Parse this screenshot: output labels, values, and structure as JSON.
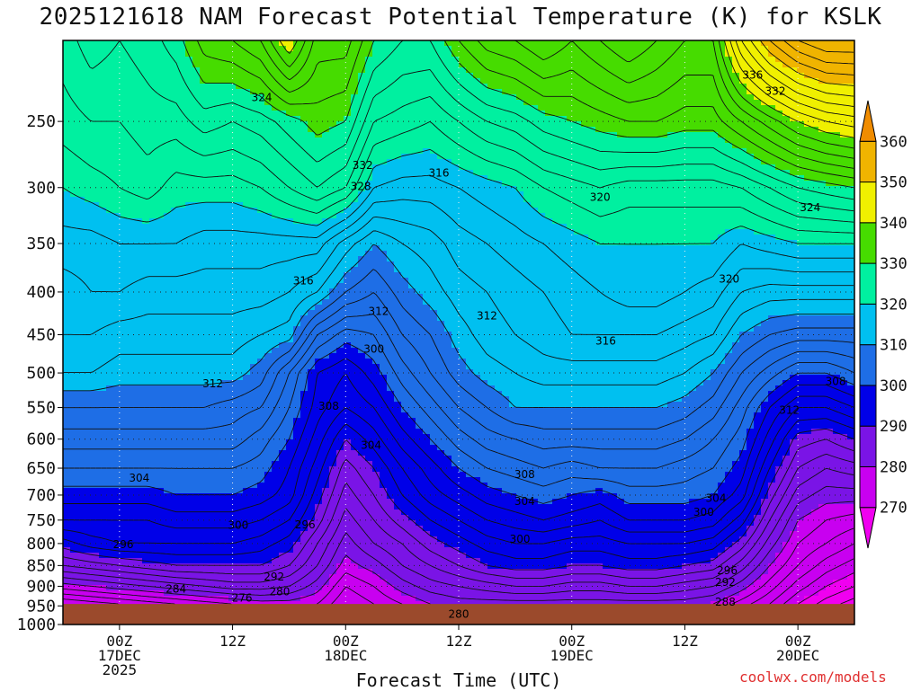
{
  "title": "2025121618 NAM Forecast Potential Temperature (K) for KSLK",
  "xlabel": "Forecast Time (UTC)",
  "credit": "coolwx.com/models",
  "colors": {
    "ground": "#9b4a2c",
    "levels": [
      {
        "min": 260,
        "max": 270,
        "color": "#f000f0"
      },
      {
        "min": 270,
        "max": 280,
        "color": "#c800f0"
      },
      {
        "min": 280,
        "max": 290,
        "color": "#7a14e6"
      },
      {
        "min": 290,
        "max": 300,
        "color": "#0000e8"
      },
      {
        "min": 300,
        "max": 310,
        "color": "#1e6ee6"
      },
      {
        "min": 310,
        "max": 320,
        "color": "#00c0f0"
      },
      {
        "min": 320,
        "max": 330,
        "color": "#00f0a0"
      },
      {
        "min": 330,
        "max": 340,
        "color": "#46dc00"
      },
      {
        "min": 340,
        "max": 350,
        "color": "#f0f000"
      },
      {
        "min": 350,
        "max": 360,
        "color": "#f0b400"
      },
      {
        "min": 360,
        "max": 370,
        "color": "#f08c00"
      }
    ]
  },
  "chart_data": {
    "type": "heatmap",
    "title": "2025121618 NAM Forecast Potential Temperature (K) for KSLK",
    "xlabel": "Forecast Time (UTC)",
    "ylabel": "",
    "y_scale": "log-pressure, inverted",
    "ylim": [
      1000,
      200
    ],
    "xlim_hours": [
      -6,
      78
    ],
    "x_tick_labels": [
      {
        "hour": 0,
        "lines": [
          "00Z",
          "17DEC",
          "2025"
        ]
      },
      {
        "hour": 12,
        "lines": [
          "12Z"
        ]
      },
      {
        "hour": 24,
        "lines": [
          "00Z",
          "18DEC"
        ]
      },
      {
        "hour": 36,
        "lines": [
          "12Z"
        ]
      },
      {
        "hour": 48,
        "lines": [
          "00Z",
          "19DEC"
        ]
      },
      {
        "hour": 60,
        "lines": [
          "12Z"
        ]
      },
      {
        "hour": 72,
        "lines": [
          "00Z",
          "20DEC"
        ]
      }
    ],
    "y_ticks": [
      250,
      300,
      350,
      400,
      450,
      500,
      550,
      600,
      650,
      700,
      750,
      800,
      850,
      900,
      950,
      1000
    ],
    "colorbar_ticks": [
      270,
      280,
      290,
      300,
      310,
      320,
      330,
      340,
      350,
      360
    ],
    "grid": true,
    "ground_pressure_hpa": 945,
    "x_hours": [
      -6,
      -3,
      0,
      3,
      6,
      9,
      12,
      15,
      18,
      21,
      24,
      27,
      30,
      33,
      36,
      39,
      42,
      45,
      48,
      51,
      54,
      57,
      60,
      63,
      66,
      69,
      72,
      75,
      78
    ],
    "pressure_levels": [
      200,
      250,
      300,
      350,
      400,
      450,
      500,
      550,
      600,
      650,
      700,
      750,
      800,
      850,
      900,
      945
    ],
    "theta_K": [
      [
        325,
        327,
        326,
        327,
        329,
        333,
        334,
        336,
        342,
        335,
        335,
        330,
        328,
        328,
        332,
        335,
        336,
        338,
        336,
        338,
        340,
        338,
        336,
        336,
        346,
        352,
        356,
        358,
        358
      ],
      [
        323,
        324,
        324,
        325,
        325,
        327,
        326,
        327,
        329,
        331,
        330,
        324,
        323,
        322,
        324,
        326,
        327,
        329,
        330,
        331,
        332,
        332,
        331,
        331,
        334,
        337,
        340,
        342,
        343
      ],
      [
        320,
        321,
        322,
        323,
        321,
        321,
        321,
        322,
        324,
        326,
        324,
        318,
        317,
        317,
        318,
        319,
        320,
        322,
        323,
        324,
        323,
        323,
        323,
        323,
        324,
        326,
        328,
        329,
        330
      ],
      [
        317,
        317,
        318,
        318,
        318,
        317,
        317,
        317,
        317,
        317,
        313,
        310,
        312,
        313,
        315,
        316,
        317,
        318,
        319,
        320,
        320,
        320,
        320,
        320,
        318,
        319,
        320,
        320,
        320
      ],
      [
        315,
        316,
        316,
        315,
        315,
        315,
        315,
        315,
        314,
        312,
        308,
        306,
        309,
        311,
        313,
        314,
        315,
        316,
        317,
        318,
        319,
        319,
        318,
        317,
        314,
        313,
        313,
        313,
        313
      ],
      [
        314,
        314,
        313,
        313,
        313,
        313,
        313,
        312,
        311,
        304,
        301,
        302,
        306,
        308,
        311,
        313,
        314,
        315,
        316,
        316,
        316,
        316,
        315,
        314,
        310,
        308,
        307,
        307,
        307
      ],
      [
        312,
        312,
        311,
        311,
        311,
        311,
        311,
        309,
        304,
        298,
        296,
        299,
        303,
        306,
        309,
        311,
        312,
        313,
        313,
        313,
        313,
        313,
        312,
        310,
        306,
        303,
        300,
        300,
        302
      ],
      [
        308,
        308,
        308,
        308,
        308,
        308,
        307,
        306,
        302,
        297,
        294,
        296,
        300,
        303,
        306,
        308,
        310,
        310,
        310,
        310,
        310,
        310,
        309,
        307,
        303,
        298,
        294,
        294,
        296
      ],
      [
        305,
        305,
        305,
        305,
        305,
        305,
        305,
        303,
        300,
        295,
        290,
        293,
        297,
        300,
        303,
        305,
        306,
        307,
        307,
        307,
        307,
        307,
        306,
        304,
        301,
        295,
        289,
        288,
        290
      ],
      [
        302,
        302,
        302,
        302,
        302,
        302,
        302,
        301,
        298,
        293,
        287,
        290,
        294,
        297,
        300,
        302,
        303,
        304,
        303,
        304,
        304,
        304,
        303,
        302,
        299,
        292,
        286,
        284,
        285
      ],
      [
        299,
        299,
        299,
        299,
        300,
        300,
        300,
        299,
        297,
        291,
        285,
        288,
        292,
        295,
        297,
        299,
        300,
        301,
        300,
        299,
        301,
        301,
        301,
        300,
        297,
        289,
        283,
        281,
        281
      ],
      [
        296,
        296,
        296,
        296,
        297,
        297,
        297,
        296,
        294,
        289,
        283,
        286,
        289,
        292,
        294,
        296,
        297,
        298,
        297,
        296,
        298,
        298,
        298,
        297,
        293,
        286,
        280,
        278,
        277
      ],
      [
        291,
        293,
        294,
        294,
        294,
        294,
        294,
        293,
        291,
        286,
        281,
        284,
        286,
        289,
        291,
        293,
        294,
        294,
        293,
        293,
        294,
        294,
        294,
        293,
        289,
        283,
        278,
        276,
        274
      ],
      [
        286,
        287,
        288,
        289,
        290,
        290,
        290,
        290,
        288,
        284,
        279,
        281,
        284,
        286,
        288,
        290,
        291,
        291,
        290,
        290,
        291,
        291,
        290,
        289,
        285,
        280,
        276,
        273,
        271
      ],
      [
        279,
        280,
        281,
        282,
        283,
        284,
        285,
        285,
        284,
        281,
        276,
        278,
        281,
        283,
        284,
        285,
        286,
        286,
        285,
        285,
        286,
        286,
        285,
        284,
        281,
        277,
        273,
        270,
        268
      ],
      [
        272,
        273,
        274,
        275,
        276,
        277,
        278,
        279,
        279,
        278,
        274,
        276,
        278,
        280,
        281,
        281,
        281,
        281,
        281,
        281,
        281,
        281,
        281,
        280,
        277,
        274,
        270,
        267,
        265
      ]
    ],
    "contour_labels": [
      {
        "x_hour": 15.1,
        "p_hpa": 234,
        "text": "324"
      },
      {
        "x_hour": 33.9,
        "p_hpa": 288,
        "text": "316"
      },
      {
        "x_hour": 25.8,
        "p_hpa": 282,
        "text": "332"
      },
      {
        "x_hour": 25.6,
        "p_hpa": 299,
        "text": "328"
      },
      {
        "x_hour": 51.0,
        "p_hpa": 308,
        "text": "320"
      },
      {
        "x_hour": 67.2,
        "p_hpa": 220,
        "text": "336"
      },
      {
        "x_hour": 69.6,
        "p_hpa": 230,
        "text": "332"
      },
      {
        "x_hour": 73.3,
        "p_hpa": 317,
        "text": "324"
      },
      {
        "x_hour": 64.7,
        "p_hpa": 386,
        "text": "320"
      },
      {
        "x_hour": 19.5,
        "p_hpa": 388,
        "text": "316"
      },
      {
        "x_hour": 27.5,
        "p_hpa": 422,
        "text": "312"
      },
      {
        "x_hour": 39.0,
        "p_hpa": 427,
        "text": "312"
      },
      {
        "x_hour": 51.6,
        "p_hpa": 458,
        "text": "316"
      },
      {
        "x_hour": 27.0,
        "p_hpa": 468,
        "text": "300"
      },
      {
        "x_hour": 9.9,
        "p_hpa": 515,
        "text": "312"
      },
      {
        "x_hour": 22.2,
        "p_hpa": 548,
        "text": "308"
      },
      {
        "x_hour": 26.7,
        "p_hpa": 610,
        "text": "304"
      },
      {
        "x_hour": 76.0,
        "p_hpa": 512,
        "text": "308"
      },
      {
        "x_hour": 71.1,
        "p_hpa": 554,
        "text": "312"
      },
      {
        "x_hour": 43.0,
        "p_hpa": 661,
        "text": "308"
      },
      {
        "x_hour": 43.0,
        "p_hpa": 712,
        "text": "304"
      },
      {
        "x_hour": 63.3,
        "p_hpa": 706,
        "text": "304"
      },
      {
        "x_hour": 62.0,
        "p_hpa": 734,
        "text": "300"
      },
      {
        "x_hour": 2.1,
        "p_hpa": 668,
        "text": "304"
      },
      {
        "x_hour": 12.6,
        "p_hpa": 761,
        "text": "300"
      },
      {
        "x_hour": 19.7,
        "p_hpa": 760,
        "text": "296"
      },
      {
        "x_hour": 0.4,
        "p_hpa": 802,
        "text": "296"
      },
      {
        "x_hour": 42.5,
        "p_hpa": 790,
        "text": "300"
      },
      {
        "x_hour": 64.5,
        "p_hpa": 862,
        "text": "296"
      },
      {
        "x_hour": 64.3,
        "p_hpa": 890,
        "text": "292"
      },
      {
        "x_hour": 16.4,
        "p_hpa": 877,
        "text": "292"
      },
      {
        "x_hour": 6.0,
        "p_hpa": 907,
        "text": "284"
      },
      {
        "x_hour": 17.0,
        "p_hpa": 914,
        "text": "280"
      },
      {
        "x_hour": 13.0,
        "p_hpa": 929,
        "text": "276"
      },
      {
        "x_hour": 36.0,
        "p_hpa": 972,
        "text": "280"
      },
      {
        "x_hour": 64.3,
        "p_hpa": 940,
        "text": "288"
      }
    ]
  }
}
